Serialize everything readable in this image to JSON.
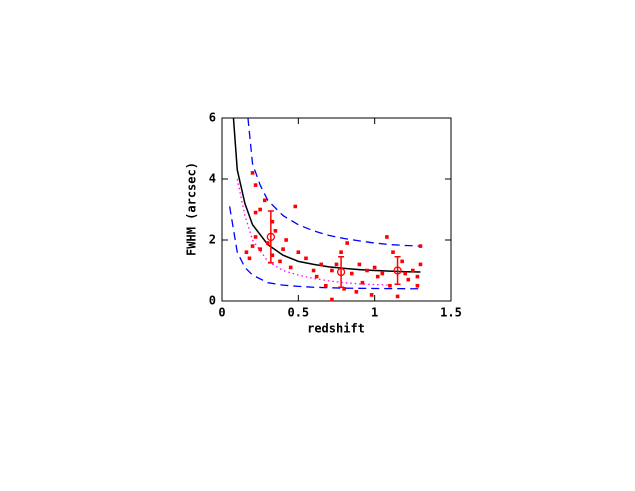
{
  "chart_data": {
    "type": "scatter",
    "xlabel": "redshift",
    "ylabel": "FWHM (arcsec)",
    "xlim": [
      0,
      1.5
    ],
    "ylim": [
      0,
      6
    ],
    "xticks": [
      0,
      0.5,
      1,
      1.5
    ],
    "yticks": [
      0,
      2,
      4,
      6
    ],
    "lines": [
      {
        "color": "#000000",
        "dash": "solid",
        "x": [
          0.075,
          0.1,
          0.15,
          0.2,
          0.3,
          0.4,
          0.5,
          0.6,
          0.7,
          0.8,
          0.9,
          1.0,
          1.1,
          1.2,
          1.3
        ],
        "values": [
          6,
          4.3,
          3.2,
          2.5,
          1.85,
          1.5,
          1.3,
          1.2,
          1.12,
          1.07,
          1.03,
          1.0,
          0.98,
          0.96,
          0.95
        ]
      },
      {
        "color": "#0000ff",
        "dash": "dashed",
        "x": [
          0.17,
          0.2,
          0.25,
          0.3,
          0.4,
          0.5,
          0.6,
          0.7,
          0.8,
          0.9,
          1.0,
          1.1,
          1.2,
          1.3
        ],
        "values": [
          6,
          4.5,
          3.8,
          3.3,
          2.8,
          2.5,
          2.3,
          2.15,
          2.05,
          1.97,
          1.9,
          1.85,
          1.82,
          1.8
        ]
      },
      {
        "color": "#0000ff",
        "dash": "dashed",
        "x": [
          0.05,
          0.1,
          0.15,
          0.2,
          0.3,
          0.4,
          0.5,
          0.6,
          0.8,
          1.0,
          1.3
        ],
        "values": [
          3.1,
          1.6,
          1.1,
          0.85,
          0.6,
          0.52,
          0.48,
          0.45,
          0.42,
          0.41,
          0.4
        ]
      },
      {
        "color": "#ff00ff",
        "dash": "dotted",
        "x": [
          0.1,
          0.15,
          0.2,
          0.3,
          0.4,
          0.5,
          0.6,
          0.7,
          0.8,
          0.9,
          1.0,
          1.1
        ],
        "values": [
          4.0,
          2.8,
          2.0,
          1.3,
          1.0,
          0.85,
          0.74,
          0.66,
          0.6,
          0.56,
          0.54,
          0.52
        ]
      }
    ],
    "points": {
      "color": "#ff0000",
      "x": [
        0.2,
        0.22,
        0.22,
        0.25,
        0.22,
        0.2,
        0.25,
        0.28,
        0.3,
        0.33,
        0.35,
        0.33,
        0.38,
        0.4,
        0.42,
        0.45,
        0.48,
        0.5,
        0.55,
        0.6,
        0.62,
        0.65,
        0.68,
        0.72,
        0.72,
        0.75,
        0.78,
        0.8,
        0.82,
        0.85,
        0.88,
        0.9,
        0.92,
        0.95,
        0.98,
        1.0,
        1.02,
        1.05,
        1.08,
        1.1,
        1.12,
        1.15,
        1.18,
        1.2,
        1.22,
        1.25,
        1.28,
        1.3,
        1.3,
        1.28,
        0.18,
        0.16
      ],
      "values": [
        4.2,
        3.8,
        2.9,
        3.0,
        2.1,
        1.8,
        1.7,
        3.3,
        1.9,
        2.6,
        2.3,
        1.5,
        1.3,
        1.7,
        2.0,
        1.1,
        3.1,
        1.6,
        1.4,
        1.0,
        0.8,
        1.2,
        0.5,
        1.0,
        0.05,
        1.2,
        1.6,
        0.4,
        1.9,
        0.9,
        0.3,
        1.2,
        0.6,
        1.0,
        0.2,
        1.1,
        0.8,
        0.9,
        2.1,
        0.5,
        1.6,
        0.15,
        1.3,
        0.9,
        0.7,
        1.0,
        0.5,
        1.2,
        1.8,
        0.8,
        1.4,
        1.6
      ]
    },
    "error_points": {
      "color": "#ff0000",
      "x": [
        0.32,
        0.78,
        1.15
      ],
      "values": [
        2.1,
        0.95,
        1.0
      ],
      "errors": [
        0.85,
        0.5,
        0.45
      ]
    }
  }
}
